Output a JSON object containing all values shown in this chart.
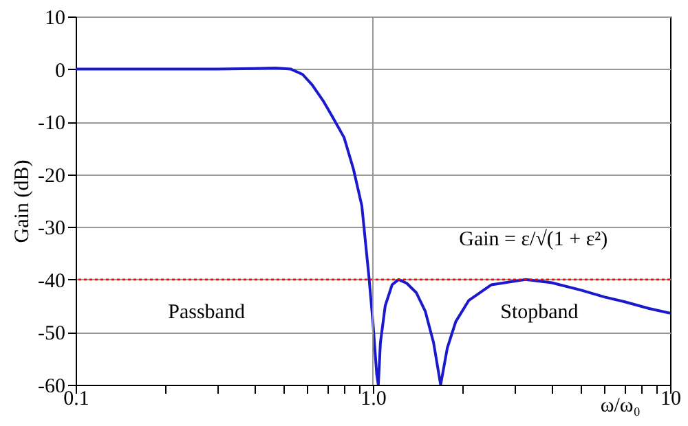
{
  "chart_data": {
    "type": "line",
    "xlabel": "ω/ω₀",
    "ylabel": "Gain (dB)",
    "log": "x",
    "x": [
      0.1,
      0.2,
      0.3,
      0.4,
      0.47,
      0.53,
      0.58,
      0.625,
      0.68,
      0.73,
      0.8,
      0.86,
      0.918,
      0.968,
      1.0,
      1.03,
      1.043,
      1.06,
      1.1,
      1.16,
      1.22,
      1.3,
      1.4,
      1.5,
      1.6,
      1.69,
      1.78,
      1.9,
      2.1,
      2.5,
      3.26,
      4,
      5,
      6,
      7,
      8.5,
      10
    ],
    "series": [
      {
        "color": "#1a1acc",
        "values": [
          0,
          0,
          0,
          0.1,
          0.2,
          0,
          -1,
          -3,
          -6,
          -9,
          -13,
          -19,
          -26,
          -39,
          -48,
          -58,
          -60,
          -52,
          -45,
          -41,
          -40,
          -40.7,
          -42.5,
          -46,
          -52,
          -60,
          -53,
          -48,
          -44,
          -41,
          -40,
          -40.6,
          -42,
          -43.3,
          -44.2,
          -45.5,
          -46.4
        ]
      }
    ],
    "xlim": [
      0.1,
      10
    ],
    "xticks": [
      0.1,
      {
        "value": 0.2,
        "label": null
      },
      {
        "value": 0.3,
        "label": null
      },
      {
        "value": 0.4,
        "label": null
      },
      {
        "value": 0.5,
        "label": null
      },
      {
        "value": 0.6,
        "label": null
      },
      {
        "value": 0.7,
        "label": null
      },
      {
        "value": 0.8,
        "label": null
      },
      {
        "value": 0.9,
        "label": null
      },
      {
        "value": 1,
        "label": "1.0"
      },
      {
        "value": 2,
        "label": null
      },
      {
        "value": 3,
        "label": null
      },
      {
        "value": 4,
        "label": null
      },
      {
        "value": 5,
        "label": null
      },
      {
        "value": 6,
        "label": null
      },
      {
        "value": 7,
        "label": null
      },
      {
        "value": 8,
        "label": null
      },
      {
        "value": 9,
        "label": null
      },
      10
    ],
    "ylim": [
      -60,
      10
    ],
    "yticks": [
      -60,
      -50,
      -40,
      -30,
      -20,
      -10,
      0,
      10
    ],
    "grid": "y",
    "marker": "none",
    "line_style": "solid",
    "ref_lines": [
      {
        "axis": "y",
        "value": -40,
        "label": "Gain = ε/√(1 + ε²)",
        "color": "#ff0000",
        "line_style": "dotted"
      },
      {
        "axis": "x",
        "value": 1,
        "label": null,
        "color": "#999999",
        "line_style": "solid"
      }
    ],
    "annotations": [
      "Passband",
      "Stopband"
    ]
  }
}
